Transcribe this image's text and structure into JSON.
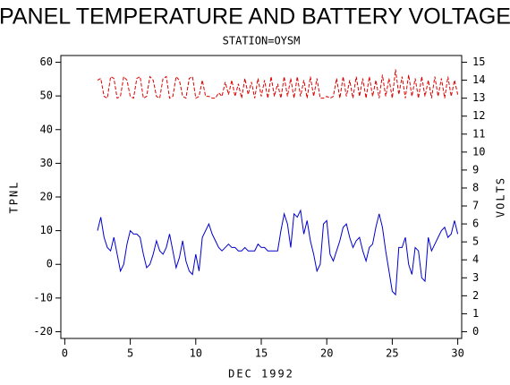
{
  "chart_data": {
    "type": "line",
    "title": "PANEL TEMPERATURE AND BATTERY VOLTAGE",
    "subtitle": "STATION=OYSM",
    "x_label": "DEC 1992",
    "y_label": "TPNL",
    "y2_label": "VOLTS",
    "xlim": [
      -0.3,
      30.3
    ],
    "xticks": [
      0,
      5,
      10,
      15,
      20,
      25,
      30
    ],
    "ylim": [
      -22,
      62
    ],
    "yticks": [
      -20,
      -10,
      0,
      10,
      20,
      30,
      40,
      50,
      60
    ],
    "y2lim": [
      -0.375,
      15.375
    ],
    "y2ticks": [
      0,
      1,
      2,
      3,
      4,
      5,
      6,
      7,
      8,
      9,
      10,
      11,
      12,
      13,
      14,
      15
    ],
    "x": [
      2.5,
      2.75,
      3,
      3.25,
      3.5,
      3.75,
      4,
      4.25,
      4.5,
      4.75,
      5,
      5.25,
      5.5,
      5.75,
      6,
      6.25,
      6.5,
      6.75,
      7,
      7.25,
      7.5,
      7.75,
      8,
      8.25,
      8.5,
      8.75,
      9,
      9.25,
      9.5,
      9.75,
      10,
      10.25,
      10.5,
      10.75,
      11,
      11.25,
      11.5,
      11.75,
      12,
      12.25,
      12.5,
      12.75,
      13,
      13.25,
      13.5,
      13.75,
      14,
      14.25,
      14.5,
      14.75,
      15,
      15.25,
      15.5,
      15.75,
      16,
      16.25,
      16.5,
      16.75,
      17,
      17.25,
      17.5,
      17.75,
      18,
      18.25,
      18.5,
      18.75,
      19,
      19.25,
      19.5,
      19.75,
      20,
      20.25,
      20.5,
      20.75,
      21,
      21.25,
      21.5,
      21.75,
      22,
      22.25,
      22.5,
      22.75,
      23,
      23.25,
      23.5,
      23.75,
      24,
      24.25,
      24.5,
      24.75,
      25,
      25.25,
      25.5,
      25.75,
      26,
      26.25,
      26.5,
      26.75,
      27,
      27.25,
      27.5,
      27.75,
      28,
      28.25,
      28.5,
      28.75,
      29,
      29.25,
      29.5,
      29.75,
      30
    ],
    "series": [
      {
        "name": "TPNL",
        "color": "#0000cc",
        "axis": "y",
        "dashed": false,
        "values": [
          10,
          14,
          8,
          5,
          4,
          8,
          3,
          -2,
          0,
          6,
          10,
          9,
          9,
          8,
          3,
          -1,
          0,
          3,
          7,
          4,
          3,
          5,
          9,
          4,
          -1,
          2,
          7,
          1,
          -2,
          -3,
          3,
          -2,
          8,
          10,
          12,
          9,
          7,
          5,
          4,
          5,
          6,
          5,
          5,
          4,
          4,
          5,
          4,
          4,
          4,
          6,
          5,
          5,
          4,
          4,
          4,
          4,
          10,
          15,
          12,
          5,
          15,
          14,
          16,
          9,
          13,
          7,
          3,
          -2,
          0,
          12,
          13,
          3,
          1,
          4,
          7,
          11,
          12,
          8,
          5,
          7,
          8,
          4,
          1,
          5,
          6,
          11,
          15,
          11,
          4,
          -2,
          -8,
          -9,
          5,
          5,
          8,
          0,
          -3,
          5,
          4,
          -4,
          -5,
          8,
          4,
          6,
          8,
          10,
          11,
          8,
          9,
          13,
          9
        ]
      },
      {
        "name": "VOLTS",
        "color": "#dd0000",
        "axis": "y2",
        "dashed": true,
        "values": [
          14.0,
          14.1,
          13.1,
          13.0,
          14.2,
          14.1,
          13.0,
          13.1,
          14.2,
          14.0,
          13.1,
          13.0,
          14.1,
          14.2,
          13.0,
          13.1,
          14.2,
          14.0,
          13.1,
          13.0,
          14.1,
          14.2,
          13.0,
          13.1,
          14.2,
          14.0,
          13.1,
          13.0,
          14.1,
          14.2,
          13.0,
          13.1,
          14.0,
          13.1,
          13.1,
          13.0,
          13.0,
          13.3,
          13.1,
          13.9,
          13.2,
          14.0,
          13.1,
          13.8,
          13.0,
          14.1,
          13.2,
          13.9,
          13.0,
          14.1,
          13.1,
          14.0,
          13.0,
          14.2,
          13.1,
          13.8,
          13.0,
          14.2,
          13.1,
          14.1,
          13.0,
          14.2,
          13.1,
          14.0,
          13.0,
          14.2,
          13.1,
          14.1,
          13.0,
          13.0,
          13.1,
          13.0,
          13.1,
          14.1,
          13.0,
          14.2,
          13.1,
          14.0,
          13.0,
          14.2,
          13.1,
          14.1,
          13.0,
          14.2,
          13.1,
          14.0,
          13.0,
          14.3,
          13.1,
          14.1,
          13.0,
          14.6,
          13.2,
          14.2,
          13.0,
          14.3,
          13.1,
          14.1,
          13.0,
          14.2,
          13.1,
          14.0,
          13.0,
          14.2,
          13.1,
          14.1,
          13.0,
          14.2,
          13.1,
          14.0,
          13.2
        ]
      }
    ]
  }
}
